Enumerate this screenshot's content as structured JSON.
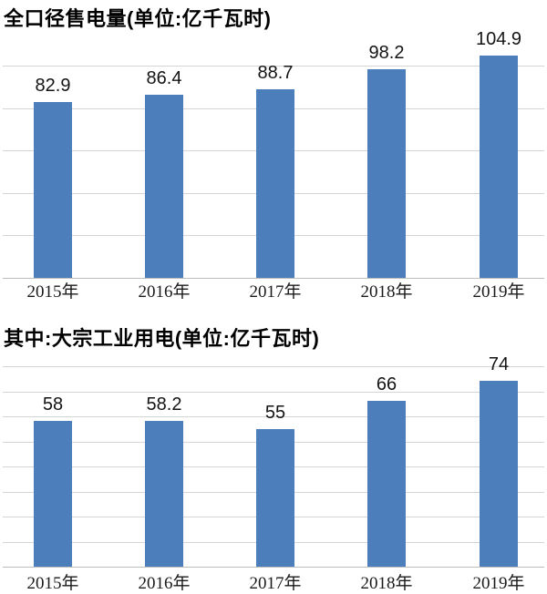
{
  "colors": {
    "bar": "#4d7ebc",
    "gridline": "#d5d5d5",
    "axis": "#bdbdbd",
    "title_text": "#000000",
    "value_text": "#141414",
    "tick_text": "#1a1a1a",
    "background": "#ffffff"
  },
  "chart_data": [
    {
      "type": "bar",
      "title": "全口径售电量(单位:亿千瓦时)",
      "categories": [
        "2015年",
        "2016年",
        "2017年",
        "2018年",
        "2019年"
      ],
      "values": [
        82.9,
        86.4,
        88.7,
        98.2,
        104.9
      ],
      "value_labels": [
        "82.9",
        "86.4",
        "88.7",
        "98.2",
        "104.9"
      ],
      "xlabel": "",
      "ylabel": "",
      "ylim": [
        0,
        110
      ],
      "grid_step": 20,
      "grid_max": 100,
      "grid": "horizontal-only",
      "legend": "none",
      "value_labels_position": "above-bars"
    },
    {
      "type": "bar",
      "title": "其中:大宗工业用电(单位:亿千瓦时)",
      "categories": [
        "2015年",
        "2016年",
        "2017年",
        "2018年",
        "2019年"
      ],
      "values": [
        58,
        58.2,
        55,
        66,
        74
      ],
      "value_labels": [
        "58",
        "58.2",
        "55",
        "66",
        "74"
      ],
      "xlabel": "",
      "ylabel": "",
      "ylim": [
        0,
        80
      ],
      "grid_step": 10,
      "grid_max": 80,
      "grid": "horizontal-only",
      "legend": "none",
      "value_labels_position": "above-bars"
    }
  ]
}
